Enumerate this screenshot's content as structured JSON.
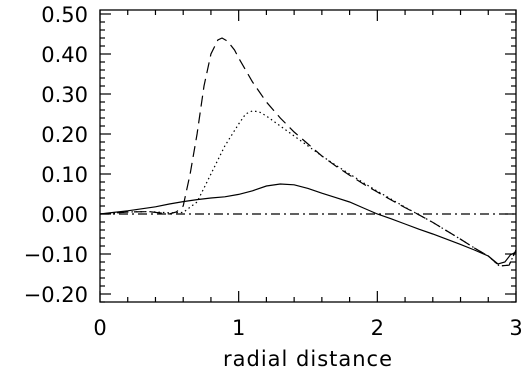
{
  "chart_data": {
    "type": "line",
    "title": "",
    "xlabel": "radial distance",
    "ylabel": "",
    "xlim": [
      0,
      3
    ],
    "ylim": [
      -0.22,
      0.51
    ],
    "x_ticks": [
      0,
      1,
      2,
      3
    ],
    "x_tick_labels": [
      "0",
      "1",
      "2",
      "3"
    ],
    "y_ticks": [
      0.5,
      0.4,
      0.3,
      0.2,
      0.1,
      0.0,
      -0.1,
      -0.2
    ],
    "y_tick_labels": [
      "0.50",
      "0.40",
      "0.30",
      "0.20",
      "0.10",
      "0.00",
      "−0.10",
      "−0.20"
    ],
    "grid": false,
    "series": [
      {
        "style": "solid",
        "color": "#000000",
        "points": [
          [
            0,
            0
          ],
          [
            0.1,
            0.004
          ],
          [
            0.2,
            0.008
          ],
          [
            0.3,
            0.013
          ],
          [
            0.4,
            0.018
          ],
          [
            0.5,
            0.025
          ],
          [
            0.6,
            0.031
          ],
          [
            0.7,
            0.036
          ],
          [
            0.8,
            0.04
          ],
          [
            0.9,
            0.043
          ],
          [
            1.0,
            0.049
          ],
          [
            1.1,
            0.058
          ],
          [
            1.2,
            0.07
          ],
          [
            1.3,
            0.075
          ],
          [
            1.4,
            0.073
          ],
          [
            1.5,
            0.064
          ],
          [
            1.6,
            0.052
          ],
          [
            1.7,
            0.041
          ],
          [
            1.8,
            0.03
          ],
          [
            1.9,
            0.015
          ],
          [
            2.0,
            0.0
          ],
          [
            2.1,
            -0.012
          ],
          [
            2.2,
            -0.025
          ],
          [
            2.3,
            -0.038
          ],
          [
            2.4,
            -0.05
          ],
          [
            2.5,
            -0.063
          ],
          [
            2.6,
            -0.076
          ],
          [
            2.7,
            -0.09
          ],
          [
            2.8,
            -0.105
          ],
          [
            2.87,
            -0.125
          ],
          [
            2.92,
            -0.12
          ],
          [
            2.96,
            -0.102
          ],
          [
            3.0,
            -0.095
          ]
        ]
      },
      {
        "style": "dashed",
        "color": "#000000",
        "points": [
          [
            0,
            0
          ],
          [
            0.2,
            0.005
          ],
          [
            0.35,
            0.006
          ],
          [
            0.45,
            0.002
          ],
          [
            0.5,
            0.0
          ],
          [
            0.55,
            0.005
          ],
          [
            0.6,
            0.02
          ],
          [
            0.65,
            0.1
          ],
          [
            0.7,
            0.2
          ],
          [
            0.75,
            0.32
          ],
          [
            0.8,
            0.4
          ],
          [
            0.85,
            0.435
          ],
          [
            0.88,
            0.44
          ],
          [
            0.92,
            0.432
          ],
          [
            0.97,
            0.41
          ],
          [
            1.0,
            0.39
          ],
          [
            1.1,
            0.33
          ],
          [
            1.2,
            0.28
          ],
          [
            1.3,
            0.24
          ],
          [
            1.4,
            0.205
          ],
          [
            1.5,
            0.175
          ],
          [
            1.6,
            0.145
          ],
          [
            1.7,
            0.12
          ],
          [
            1.8,
            0.097
          ],
          [
            1.9,
            0.075
          ],
          [
            2.0,
            0.055
          ],
          [
            2.1,
            0.035
          ],
          [
            2.2,
            0.016
          ],
          [
            2.3,
            -0.002
          ],
          [
            2.4,
            -0.021
          ],
          [
            2.5,
            -0.042
          ],
          [
            2.6,
            -0.063
          ],
          [
            2.7,
            -0.085
          ],
          [
            2.8,
            -0.105
          ],
          [
            2.88,
            -0.13
          ],
          [
            2.95,
            -0.128
          ],
          [
            3.0,
            -0.09
          ]
        ]
      },
      {
        "style": "dotted",
        "color": "#000000",
        "points": [
          [
            0,
            0
          ],
          [
            0.2,
            0.005
          ],
          [
            0.35,
            0.006
          ],
          [
            0.5,
            0.003
          ],
          [
            0.6,
            0.004
          ],
          [
            0.7,
            0.03
          ],
          [
            0.8,
            0.1
          ],
          [
            0.9,
            0.17
          ],
          [
            1.0,
            0.225
          ],
          [
            1.05,
            0.25
          ],
          [
            1.1,
            0.258
          ],
          [
            1.15,
            0.255
          ],
          [
            1.2,
            0.245
          ],
          [
            1.3,
            0.22
          ],
          [
            1.4,
            0.195
          ],
          [
            1.5,
            0.17
          ],
          [
            1.6,
            0.145
          ],
          [
            1.7,
            0.122
          ],
          [
            1.8,
            0.1
          ],
          [
            1.9,
            0.078
          ],
          [
            2.0,
            0.057
          ],
          [
            2.1,
            0.037
          ],
          [
            2.2,
            0.017
          ],
          [
            2.3,
            -0.002
          ],
          [
            2.4,
            -0.021
          ],
          [
            2.5,
            -0.042
          ],
          [
            2.6,
            -0.063
          ],
          [
            2.7,
            -0.085
          ],
          [
            2.8,
            -0.105
          ],
          [
            2.88,
            -0.13
          ],
          [
            2.95,
            -0.128
          ],
          [
            3.0,
            -0.09
          ]
        ]
      },
      {
        "style": "dash-dot",
        "color": "#000000",
        "points": [
          [
            0,
            0
          ],
          [
            3,
            0
          ]
        ]
      }
    ]
  }
}
